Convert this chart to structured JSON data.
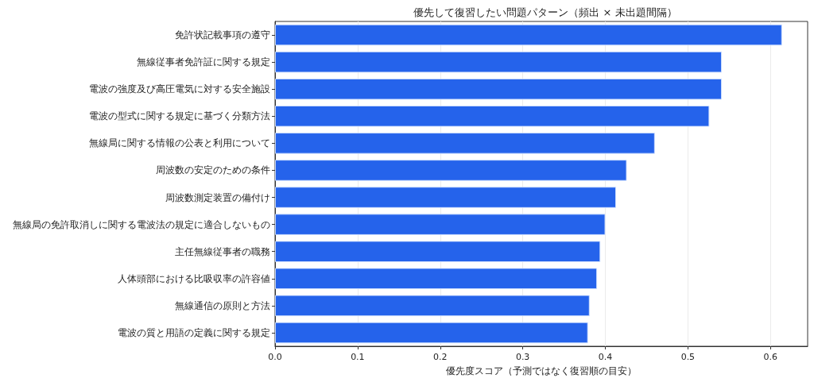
{
  "chart_data": {
    "type": "bar",
    "orientation": "horizontal",
    "title": "優先して復習したい問題パターン（頻出 × 未出題間隔）",
    "xlabel": "優先度スコア（予測ではなく復習順の目安）",
    "categories": [
      "免許状記載事項の遵守",
      "無線従事者免許証に関する規定",
      "電波の強度及び高圧電気に対する安全施設",
      "電波の型式に関する規定に基づく分類方法",
      "無線局に関する情報の公表と利用について",
      "周波数の安定のための条件",
      "周波数測定装置の備付け",
      "無線局の免許取消しに関する電波法の規定に適合しないもの",
      "主任無線従事者の職務",
      "人体頭部における比吸収率の許容値",
      "無線通信の原則と方法",
      "電波の質と用語の定義に関する規定"
    ],
    "values": [
      0.614,
      0.541,
      0.541,
      0.526,
      0.46,
      0.426,
      0.413,
      0.4,
      0.394,
      0.39,
      0.381,
      0.379
    ],
    "color": "#2563eb",
    "xlim": [
      0,
      0.645
    ],
    "xticks": [
      {
        "value": 0,
        "label": "0.0"
      },
      0.1,
      0.2,
      0.3,
      0.4,
      0.5,
      0.6
    ],
    "grid": "x"
  }
}
